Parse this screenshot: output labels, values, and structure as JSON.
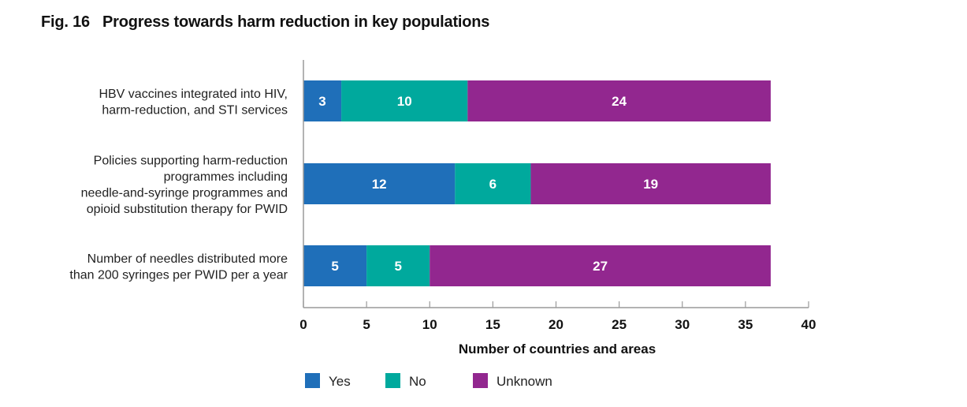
{
  "chart_data": {
    "type": "bar",
    "orientation": "horizontal",
    "stacked": true,
    "title": "Fig. 16   Progress towards harm reduction in key populations",
    "categories": [
      [
        "HBV vaccines integrated into HIV,",
        "harm-reduction, and STI services"
      ],
      [
        "Policies supporting harm-reduction",
        "programmes including",
        "needle-and-syringe programmes and",
        "opioid substitution therapy for PWID"
      ],
      [
        "Number of needles distributed more",
        "than 200 syringes per PWID per a year"
      ]
    ],
    "series": [
      {
        "name": "Yes",
        "color": "#1f6fb9",
        "values": [
          3,
          12,
          5
        ]
      },
      {
        "name": "No",
        "color": "#00a99d",
        "values": [
          10,
          6,
          5
        ]
      },
      {
        "name": "Unknown",
        "color": "#92278f",
        "values": [
          24,
          19,
          27
        ]
      }
    ],
    "xlabel": "Number of countries and areas",
    "ylabel": "",
    "xlim": [
      0,
      40
    ],
    "xticks": [
      0,
      5,
      10,
      15,
      20,
      25,
      30,
      35,
      40
    ],
    "grid": false,
    "legend_position": "bottom-left",
    "data_labels": true
  }
}
